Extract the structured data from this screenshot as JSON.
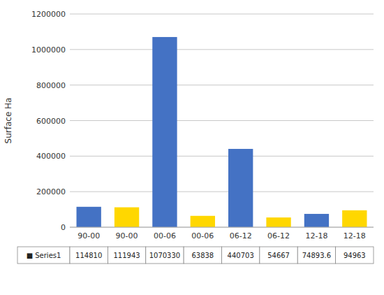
{
  "chart_data": {
    "type": "bar",
    "ylabel": "Surface Ha",
    "categories": [
      "90-00",
      "90-00",
      "00-06",
      "00-06",
      "06-12",
      "06-12",
      "12-18",
      "12-18"
    ],
    "series": [
      {
        "name": "■ Series1",
        "colors": [
          "#4472C4",
          "#FFD700",
          "#4472C4",
          "#FFD700",
          "#4472C4",
          "#FFD700",
          "#4472C4",
          "#FFD700"
        ],
        "values": [
          114810,
          111943,
          1070330,
          63838,
          440703,
          54667,
          74893.6,
          94963
        ]
      }
    ],
    "ylim": [
      0,
      1200000
    ],
    "yticks": [
      0,
      200000,
      400000,
      600000,
      800000,
      1000000,
      1200000
    ],
    "grid": true,
    "data_labels": true
  }
}
